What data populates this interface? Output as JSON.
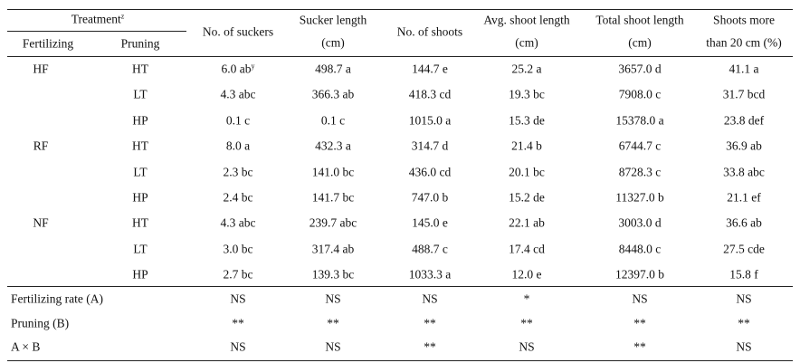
{
  "header": {
    "treatment": "Treatment",
    "treatment_note": "z",
    "fertilizing": "Fertilizing",
    "pruning": "Pruning",
    "columns": [
      [
        "No. of suckers"
      ],
      [
        "Sucker length",
        "(cm)"
      ],
      [
        "No. of shoots"
      ],
      [
        "Avg. shoot length",
        "(cm)"
      ],
      [
        "Total shoot length",
        "(cm)"
      ],
      [
        "Shoots more",
        "than 20 cm (%)"
      ]
    ]
  },
  "rows": [
    {
      "fertilizing": "HF",
      "pruning": "HT",
      "values": [
        "6.0 ab",
        "498.7 a",
        "144.7 e",
        "25.2 a",
        "3657.0 d",
        "41.1 a"
      ],
      "note": "y"
    },
    {
      "pruning": "LT",
      "values": [
        "4.3 abc",
        "366.3 ab",
        "418.3 cd",
        "19.3 bc",
        "7908.0 c",
        "31.7 bcd"
      ]
    },
    {
      "pruning": "HP",
      "values": [
        "0.1 c",
        "0.1 c",
        "1015.0 a",
        "15.3 de",
        "15378.0 a",
        "23.8 def"
      ]
    },
    {
      "fertilizing": "RF",
      "pruning": "HT",
      "values": [
        "8.0 a",
        "432.3 a",
        "314.7 d",
        "21.4 b",
        "6744.7 c",
        "36.9 ab"
      ]
    },
    {
      "pruning": "LT",
      "values": [
        "2.3 bc",
        "141.0 bc",
        "436.0 cd",
        "20.1 bc",
        "8728.3 c",
        "33.8 abc"
      ]
    },
    {
      "pruning": "HP",
      "values": [
        "2.4 bc",
        "141.7 bc",
        "747.0 b",
        "15.2 de",
        "11327.0 b",
        "21.1 ef"
      ]
    },
    {
      "fertilizing": "NF",
      "pruning": "HT",
      "values": [
        "4.3 abc",
        "239.7 abc",
        "145.0 e",
        "22.1 ab",
        "3003.0 d",
        "36.6 ab"
      ]
    },
    {
      "pruning": "LT",
      "values": [
        "3.0 bc",
        "317.4 ab",
        "488.7 c",
        "17.4 cd",
        "8448.0 c",
        "27.5 cde"
      ]
    },
    {
      "pruning": "HP",
      "values": [
        "2.7 bc",
        "139.3 bc",
        "1033.3 a",
        "12.0 e",
        "12397.0 b",
        "15.8 f"
      ]
    }
  ],
  "stats": [
    {
      "label": "Fertilizing rate (A)",
      "values": [
        "NS",
        "NS",
        "NS",
        "*",
        "NS",
        "NS"
      ]
    },
    {
      "label": "Pruning (B)",
      "values": [
        "**",
        "**",
        "**",
        "**",
        "**",
        "**"
      ]
    },
    {
      "label": "A × B",
      "values": [
        "NS",
        "NS",
        "**",
        "NS",
        "**",
        "NS"
      ]
    }
  ]
}
